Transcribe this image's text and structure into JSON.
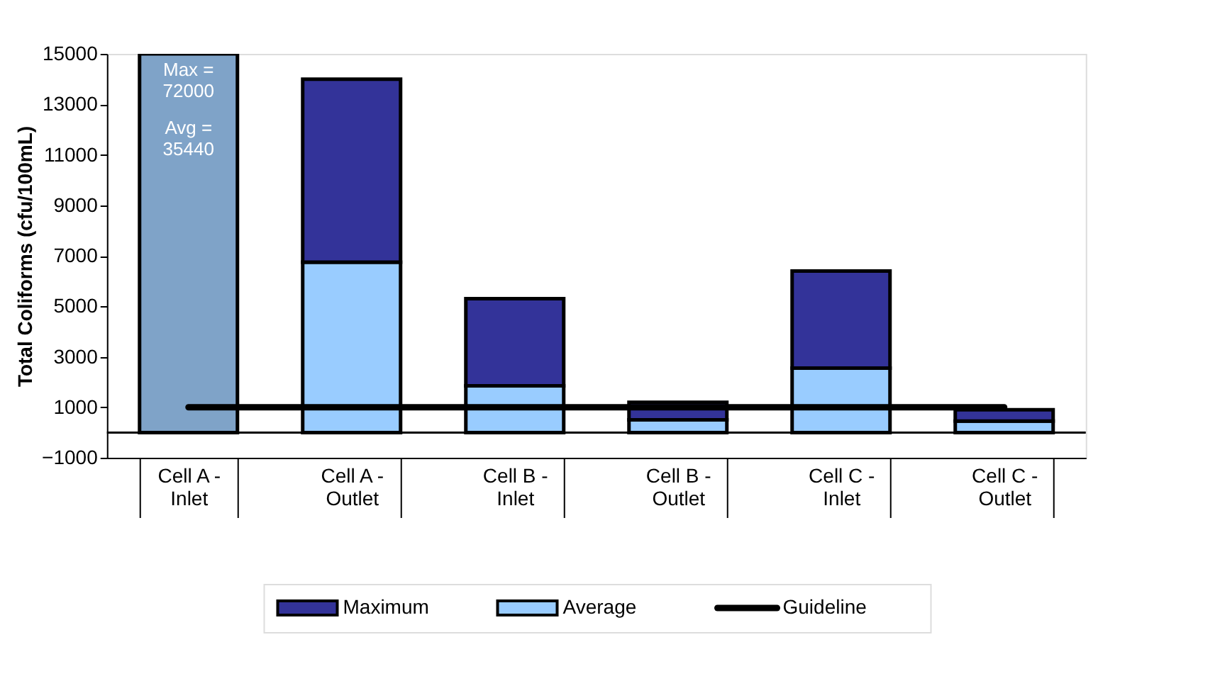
{
  "chart_data": {
    "type": "bar",
    "stacked": true,
    "ylabel": "Total Coliforms (cfu/100mL)",
    "categories": [
      "Cell A - Inlet",
      "Cell A - Outlet",
      "Cell B - Inlet",
      "Cell B - Outlet",
      "Cell C - Inlet",
      "Cell C - Outlet"
    ],
    "series": [
      {
        "name": "Average",
        "color": "#99ccff",
        "values": [
          null,
          6750,
          1850,
          500,
          2550,
          450
        ]
      },
      {
        "name": "Maximum",
        "color": "#333399",
        "values": [
          null,
          7250,
          3450,
          700,
          3850,
          450
        ]
      },
      {
        "color": "#7fa3c8",
        "values": [
          15000,
          null,
          null,
          null,
          null,
          null
        ]
      },
      {
        "name": "Guideline",
        "type": "line",
        "color": "#000000",
        "values": [
          1000,
          1000,
          1000,
          1000,
          1000,
          1000
        ]
      }
    ],
    "annotations": [
      "Max = 72000",
      "Avg = 35440"
    ],
    "ylim": [
      -1000,
      15000
    ],
    "yticks": [
      -1000,
      1000,
      3000,
      5000,
      7000,
      9000,
      11000,
      13000,
      15000
    ],
    "ref_lines": [
      {
        "axis": "y",
        "value": 0,
        "color": "#000000"
      }
    ],
    "grid": false,
    "legend": "bottom"
  }
}
